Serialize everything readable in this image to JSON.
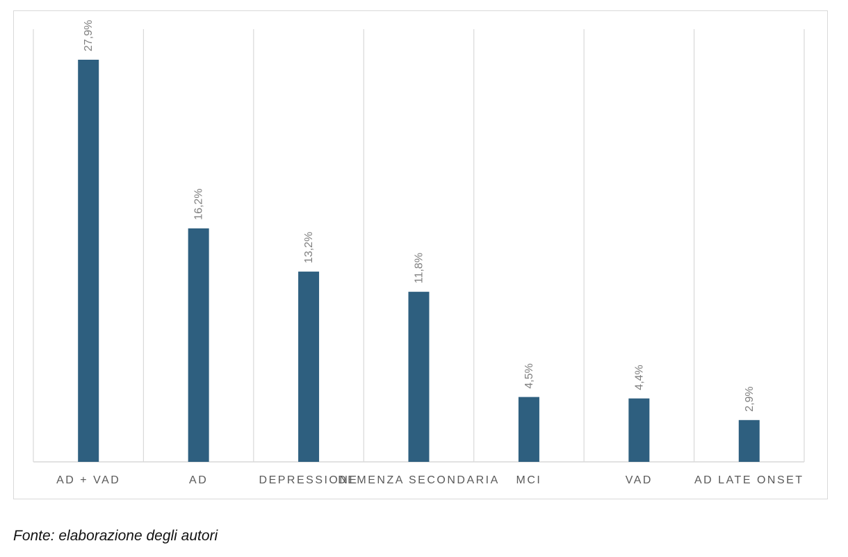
{
  "chart_data": {
    "type": "bar",
    "categories": [
      "AD + VAD",
      "AD",
      "DEPRESSIONE",
      "DEMENZA SECONDARIA",
      "MCI",
      "VAD",
      "AD LATE ONSET"
    ],
    "values": [
      27.9,
      16.2,
      13.2,
      11.8,
      4.5,
      4.4,
      2.9
    ],
    "value_labels": [
      "27,9%",
      "16,2%",
      "13,2%",
      "11,8%",
      "4,5%",
      "4,4%",
      "2,9%"
    ],
    "title": "",
    "xlabel": "",
    "ylabel": "",
    "ylim": [
      0,
      30
    ],
    "grid": "vertical category separators",
    "legend": "none",
    "colors": {
      "bar": "#2e5f7f",
      "label": "#7f7f7f",
      "grid": "#d9d9d9",
      "axis_text": "#595959"
    }
  },
  "footer": {
    "source": "Fonte: elaborazione degli autori"
  }
}
